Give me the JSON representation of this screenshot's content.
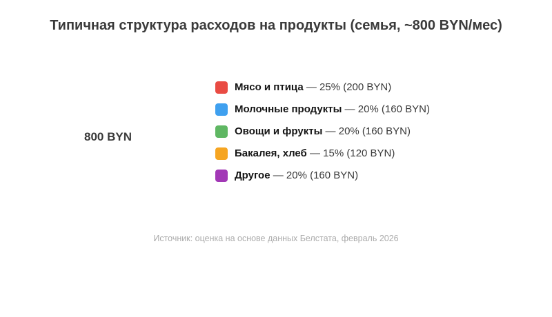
{
  "source": "Источник: оценка на основе данных Белстата, февраль 2026",
  "chart_data": {
    "type": "pie",
    "title": "Типичная структура расходов на продукты (семья, ~800 BYN/мес)",
    "total_label": "800 BYN",
    "total_value": 800,
    "unit": "BYN",
    "legend_position": "center-right",
    "categories": [
      "Мясо и птица",
      "Молочные продукты",
      "Овощи и фрукты",
      "Бакалея, хлеб",
      "Другое"
    ],
    "percents": [
      25,
      20,
      20,
      15,
      20
    ],
    "values_byn": [
      200,
      160,
      160,
      120,
      160
    ],
    "series": [
      {
        "label": "Мясо и птица",
        "percent": 25,
        "value_byn": 200,
        "suffix": " — 25% (200 BYN)",
        "color": "#E94B43"
      },
      {
        "label": "Молочные продукты",
        "percent": 20,
        "value_byn": 160,
        "suffix": " — 20% (160 BYN)",
        "color": "#3FA0EF"
      },
      {
        "label": "Овощи и фрукты",
        "percent": 20,
        "value_byn": 160,
        "suffix": " — 20% (160 BYN)",
        "color": "#5FB763"
      },
      {
        "label": "Бакалея, хлеб",
        "percent": 15,
        "value_byn": 120,
        "suffix": " — 15% (120 BYN)",
        "color": "#F6A522"
      },
      {
        "label": "Другое",
        "percent": 20,
        "value_byn": 160,
        "suffix": " — 20% (160 BYN)",
        "color": "#A238B6"
      }
    ]
  }
}
